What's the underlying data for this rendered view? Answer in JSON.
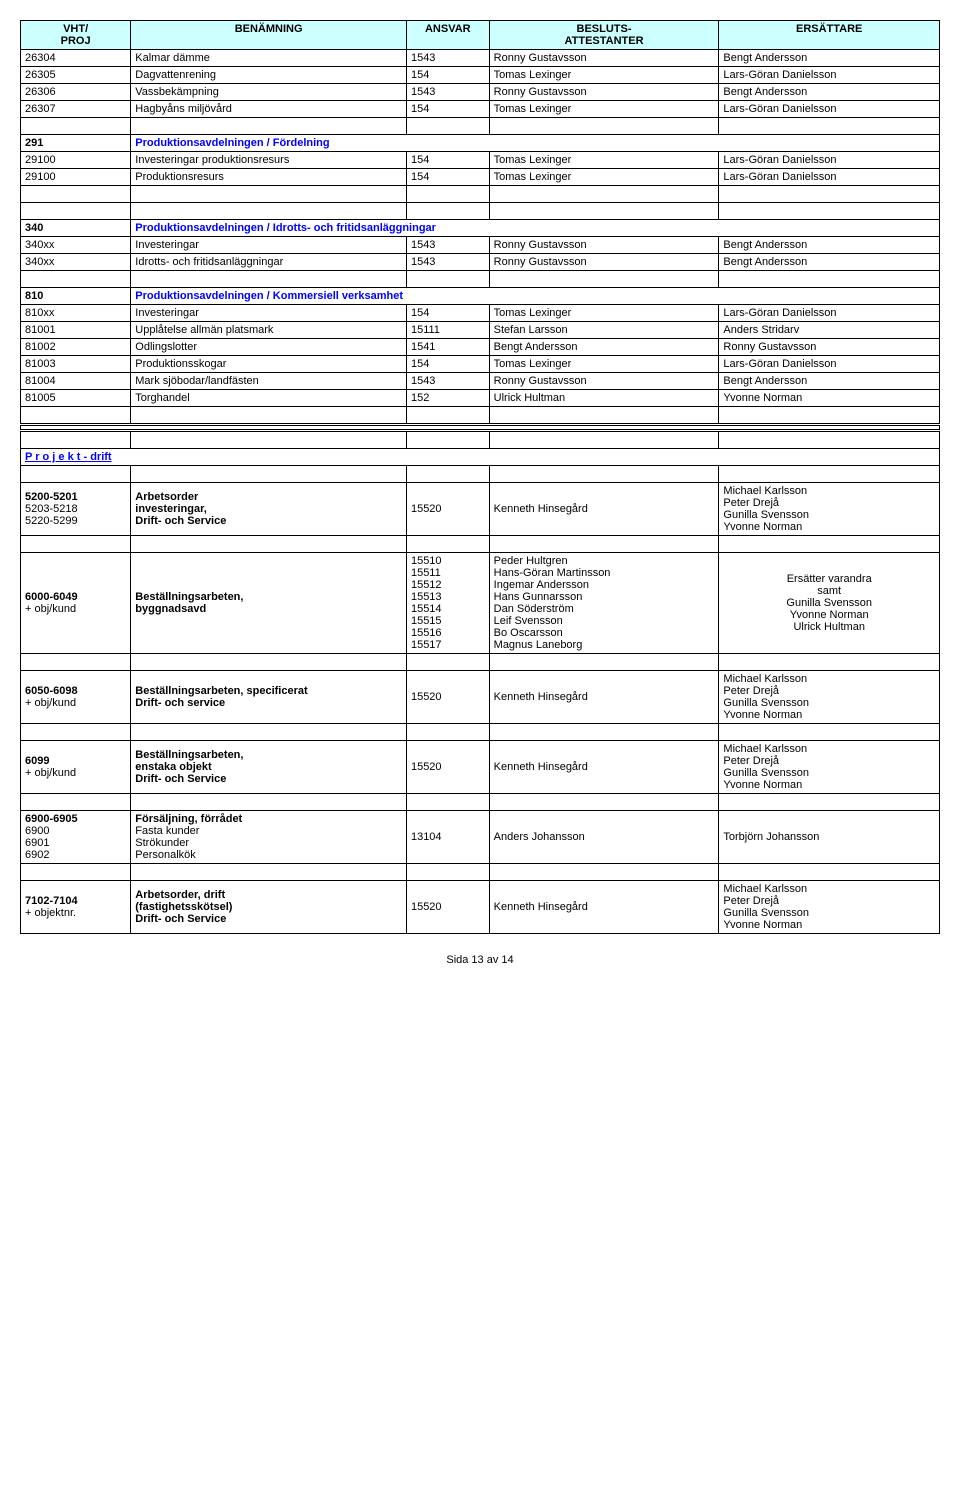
{
  "header": {
    "col0a": "VHT/",
    "col0b": "PROJ",
    "col1": "BENÄMNING",
    "col2": "ANSVAR",
    "col3a": "BESLUTS-",
    "col3b": "ATTESTANTER",
    "col4": "ERSÄTTARE"
  },
  "part1_rows": [
    [
      "26304",
      "Kalmar dämme",
      "1543",
      "Ronny Gustavsson",
      "Bengt Andersson"
    ],
    [
      "26305",
      "Dagvattenrening",
      "154",
      "Tomas Lexinger",
      "Lars-Göran Danielsson"
    ],
    [
      "26306",
      "Vassbekämpning",
      "1543",
      "Ronny Gustavsson",
      "Bengt Andersson"
    ],
    [
      "26307",
      "Hagbyåns miljövård",
      "154",
      "Tomas Lexinger",
      "Lars-Göran Danielsson"
    ]
  ],
  "sec291": {
    "code": "291",
    "title": "Produktionsavdelningen / Fördelning",
    "rows": [
      [
        "29100",
        "Investeringar produktionsresurs",
        "154",
        "Tomas Lexinger",
        "Lars-Göran Danielsson"
      ],
      [
        "29100",
        "Produktionsresurs",
        "154",
        "Tomas Lexinger",
        "Lars-Göran Danielsson"
      ]
    ]
  },
  "sec340": {
    "code": "340",
    "title": "Produktionsavdelningen / Idrotts- och fritidsanläggningar",
    "rows": [
      [
        "340xx",
        "Investeringar",
        "1543",
        "Ronny Gustavsson",
        "Bengt Andersson"
      ],
      [
        "340xx",
        "Idrotts- och fritidsanläggningar",
        "1543",
        "Ronny Gustavsson",
        "Bengt Andersson"
      ]
    ]
  },
  "sec810": {
    "code": "810",
    "title": "Produktionsavdelningen / Kommersiell verksamhet",
    "rows": [
      [
        "810xx",
        "Investeringar",
        "154",
        "Tomas Lexinger",
        "Lars-Göran Danielsson"
      ],
      [
        "81001",
        "Upplåtelse allmän platsmark",
        "15111",
        "Stefan Larsson",
        "Anders Stridarv"
      ],
      [
        "81002",
        "Odlingslotter",
        "1541",
        "Bengt Andersson",
        "Ronny Gustavsson"
      ],
      [
        "81003",
        "Produktionsskogar",
        "154",
        "Tomas Lexinger",
        "Lars-Göran Danielsson"
      ],
      [
        "81004",
        "Mark sjöbodar/landfästen",
        "1543",
        "Ronny Gustavsson",
        "Bengt Andersson"
      ],
      [
        "81005",
        "Torghandel",
        "152",
        "Ulrick Hultman",
        "Yvonne Norman"
      ]
    ]
  },
  "project_label": "P r o j e k t  -  drift",
  "proj_rows": [
    {
      "c0": "5200-5201\n5203-5218\n5220-5299",
      "c1": "Arbetsorder\ninvesteringar,\nDrift- och Service",
      "c1_bold": true,
      "c2": "15520",
      "c3": "Kenneth Hinsegård",
      "c4": "Michael Karlsson\nPeter Drejå\nGunilla Svensson\nYvonne Norman"
    },
    {
      "c0": "6000-6049\n+ obj/kund",
      "c1": "Beställningsarbeten,\nbyggnadsavd",
      "c1_bold": true,
      "c2": "15510\n15511\n15512\n15513\n15514\n15515\n15516\n15517",
      "c3": "Peder Hultgren\nHans-Göran Martinsson\nIngemar Andersson\nHans Gunnarsson\nDan Söderström\nLeif Svensson\nBo Oscarsson\nMagnus Laneborg",
      "c4": "Ersätter varandra\nsamt\nGunilla Svensson\nYvonne Norman\nUlrick Hultman",
      "c4_center": true
    },
    {
      "c0": "6050-6098\n+ obj/kund",
      "c1": "Beställningsarbeten, specificerat\nDrift- och service",
      "c1_bold": true,
      "c2": "15520",
      "c3": "Kenneth Hinsegård",
      "c4": "Michael Karlsson\nPeter Drejå\nGunilla Svensson\nYvonne Norman"
    },
    {
      "c0": "6099\n+ obj/kund",
      "c1": "Beställningsarbeten,\nenstaka objekt\nDrift- och Service",
      "c1_bold": true,
      "c2": "15520",
      "c3": "Kenneth Hinsegård",
      "c4": "Michael Karlsson\nPeter Drejå\nGunilla Svensson\nYvonne Norman"
    },
    {
      "c0": "6900-6905\n6900\n6901\n6902",
      "c1": "Försäljning, förrådet\nFasta kunder\nStrökunder\nPersonalkök",
      "c1_bold_first": true,
      "c2": "13104",
      "c3": "Anders Johansson",
      "c4": "Torbjörn Johansson"
    },
    {
      "c0": "7102-7104\n+ objektnr.",
      "c1": "Arbetsorder, drift\n(fastighetsskötsel)\nDrift- och Service",
      "c1_bold": true,
      "c2": "15520",
      "c3": "Kenneth Hinsegård",
      "c4": "Michael Karlsson\nPeter Drejå\nGunilla Svensson\nYvonne Norman"
    }
  ],
  "footer": "Sida 13 av 14"
}
